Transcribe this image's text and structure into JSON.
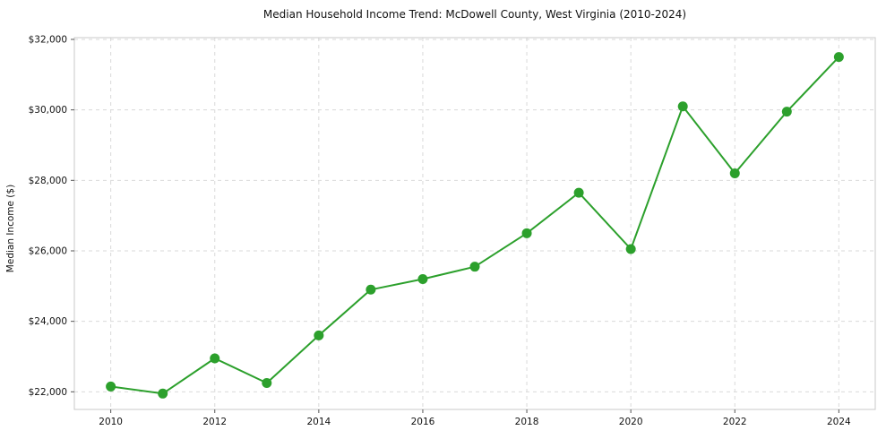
{
  "chart_data": {
    "type": "line",
    "title": "Median Household Income Trend: McDowell County, West Virginia (2010-2024)",
    "xlabel": "",
    "ylabel": "Median Income ($)",
    "x": [
      2010,
      2011,
      2012,
      2013,
      2014,
      2015,
      2016,
      2017,
      2018,
      2019,
      2020,
      2021,
      2022,
      2023,
      2024
    ],
    "series": [
      {
        "name": "Median Household Income",
        "values": [
          22150,
          21950,
          22950,
          22250,
          23600,
          24900,
          25200,
          25550,
          26500,
          27650,
          26050,
          30100,
          28200,
          29950,
          31500
        ],
        "color": "#2ca02c",
        "marker": "circle"
      }
    ],
    "xticks": [
      2010,
      2012,
      2014,
      2016,
      2018,
      2020,
      2022,
      2024
    ],
    "yticks": [
      22000,
      24000,
      26000,
      28000,
      30000,
      32000
    ],
    "ytick_labels": [
      "$22,000",
      "$24,000",
      "$26,000",
      "$28,000",
      "$30,000",
      "$32,000"
    ],
    "xlim": [
      2009.3,
      2024.7
    ],
    "ylim": [
      21500,
      32050
    ],
    "grid": true,
    "grid_style": "dashed",
    "legend": "none",
    "colors": {
      "line": "#2ca02c",
      "grid": "#d9d9d9",
      "spine": "#c8c8c8",
      "tick": "#555555",
      "text": "#111111",
      "background": "#ffffff"
    }
  }
}
